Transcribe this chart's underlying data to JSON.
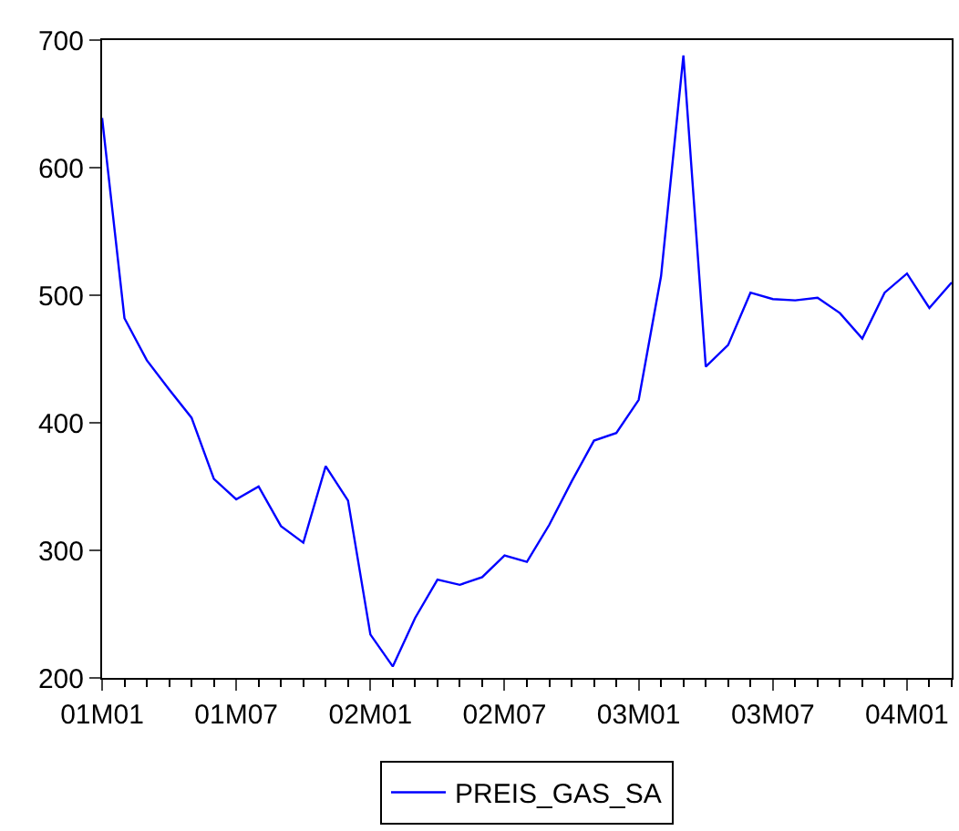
{
  "chart_data": {
    "type": "line",
    "categories": [
      "01M01",
      null,
      null,
      null,
      null,
      null,
      "01M07",
      null,
      null,
      null,
      null,
      null,
      "02M01",
      null,
      null,
      null,
      null,
      null,
      "02M07",
      null,
      null,
      null,
      null,
      null,
      "03M01",
      null,
      null,
      null,
      null,
      null,
      "03M07",
      null,
      null,
      null,
      null,
      null,
      "04M01",
      null,
      null
    ],
    "series": [
      {
        "name": "PREIS_GAS_SA",
        "color": "#0000ff",
        "values": [
          639,
          482,
          449,
          426,
          404,
          356,
          340,
          350,
          319,
          306,
          366,
          339,
          234,
          209,
          247,
          277,
          273,
          279,
          296,
          291,
          320,
          354,
          386,
          392,
          418,
          515,
          688,
          444,
          461,
          502,
          497,
          496,
          498,
          486,
          466,
          502,
          517,
          490,
          510
        ]
      }
    ],
    "ylim": [
      200,
      700
    ],
    "yticks": [
      200,
      300,
      400,
      500,
      600,
      700
    ],
    "legend": "bottom",
    "marker": "none",
    "line_style": "solid"
  }
}
